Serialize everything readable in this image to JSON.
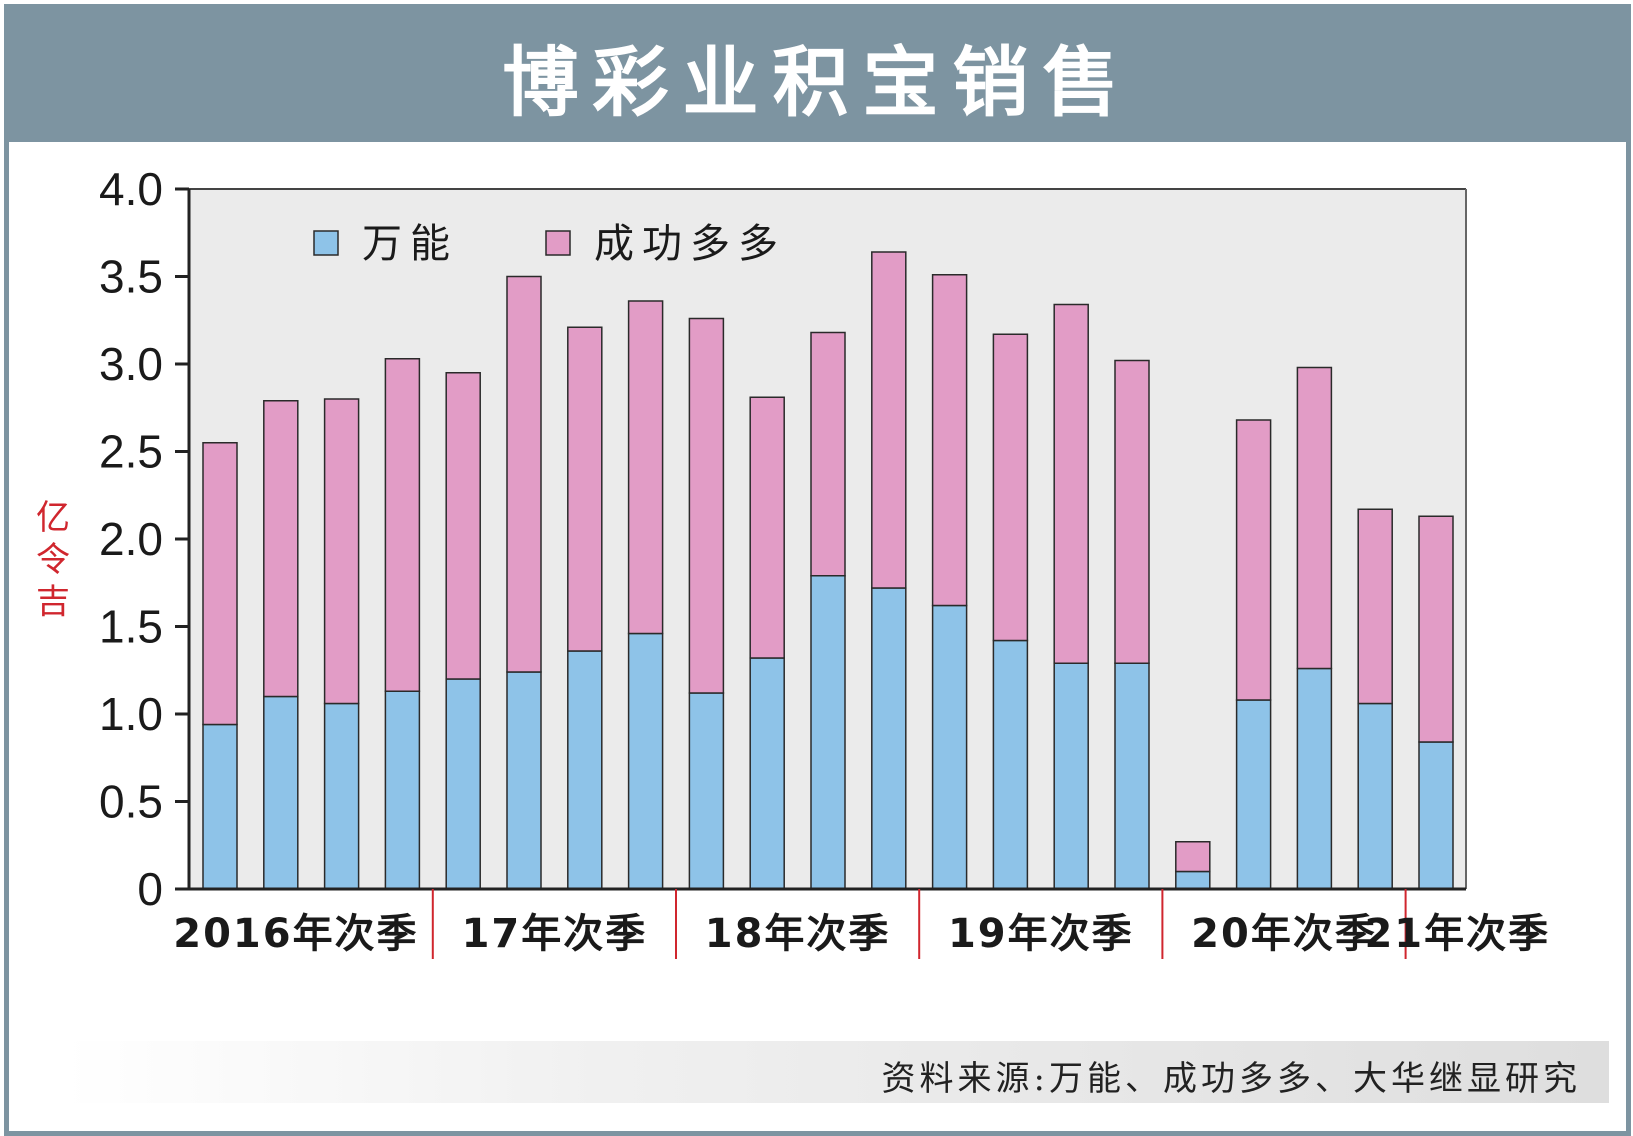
{
  "header": {
    "title": "博彩业积宝销售"
  },
  "source": {
    "text": "资料来源:万能、成功多多、大华继显研究"
  },
  "colors": {
    "header_bg": "#7d94a1",
    "magnum": "#8ec3e8",
    "toto": "#e29cc6",
    "unit_label": "#d0262e"
  },
  "chart_data": {
    "type": "bar",
    "stacked": true,
    "ylabel": "亿令吉",
    "ylim": [
      0,
      4.0
    ],
    "yticks": [
      "0",
      "0.5",
      "1.0",
      "1.5",
      "2.0",
      "2.5",
      "3.0",
      "3.5",
      "4.0"
    ],
    "categories": [
      "2016Q2",
      "2016Q3",
      "2016Q4",
      "2017Q1",
      "2017Q2",
      "2017Q3",
      "2017Q4",
      "2018Q1",
      "2018Q2",
      "2018Q3",
      "2018Q4",
      "2019Q1",
      "2019Q2",
      "2019Q3",
      "2019Q4",
      "2020Q1",
      "2020Q2",
      "2020Q3",
      "2020Q4",
      "2021Q1",
      "2021Q2"
    ],
    "group_labels": [
      {
        "label": "2016年次季",
        "from": 0,
        "to": 3
      },
      {
        "label": "17年次季",
        "from": 4,
        "to": 7
      },
      {
        "label": "18年次季",
        "from": 8,
        "to": 11
      },
      {
        "label": "19年次季",
        "from": 12,
        "to": 15
      },
      {
        "label": "20年次季",
        "from": 16,
        "to": 19
      },
      {
        "label": "21年次季",
        "from": 20,
        "to": 20
      }
    ],
    "legend_position": "top-left",
    "series": [
      {
        "name": "万能",
        "color": "#8ec3e8",
        "values": [
          0.94,
          1.1,
          1.06,
          1.13,
          1.2,
          1.24,
          1.36,
          1.46,
          1.12,
          1.32,
          1.79,
          1.72,
          1.62,
          1.42,
          1.29,
          1.29,
          0.1,
          1.08,
          1.26,
          1.06,
          0.84
        ]
      },
      {
        "name": "成功多多",
        "color": "#e29cc6",
        "values": [
          1.61,
          1.69,
          1.74,
          1.9,
          1.75,
          2.26,
          1.85,
          1.9,
          2.14,
          1.49,
          1.39,
          1.92,
          1.89,
          1.75,
          2.05,
          1.73,
          0.17,
          1.6,
          1.72,
          1.11,
          1.29
        ]
      }
    ]
  }
}
